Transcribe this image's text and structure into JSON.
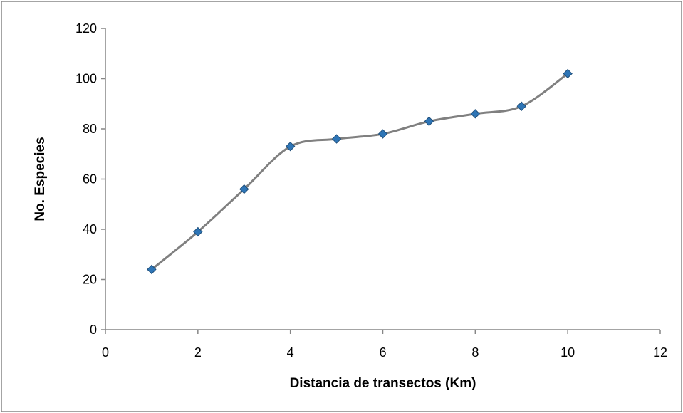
{
  "chart_data": {
    "type": "scatter",
    "title": "",
    "xlabel": "Distancia de transectos (Km)",
    "ylabel": "No. Especies",
    "xlim": [
      0,
      12
    ],
    "ylim": [
      0,
      120
    ],
    "xticks": [
      0,
      2,
      4,
      6,
      8,
      10,
      12
    ],
    "yticks": [
      0,
      20,
      40,
      60,
      80,
      100,
      120
    ],
    "grid": false,
    "legend": "none",
    "line_style": "smooth",
    "line_color": "#808080",
    "marker": "diamond",
    "marker_color": "#2E75B6",
    "marker_edge_color": "#1F4E79",
    "border_color": "#868686",
    "series": [
      {
        "x": [
          1,
          2,
          3,
          4,
          5,
          6,
          7,
          8,
          9,
          10
        ],
        "y": [
          24,
          39,
          56,
          73,
          76,
          78,
          83,
          86,
          89,
          102
        ]
      }
    ]
  }
}
